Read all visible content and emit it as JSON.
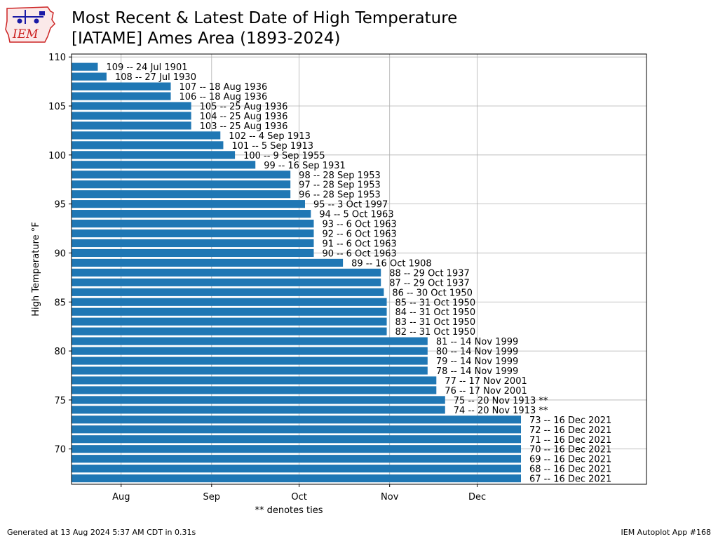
{
  "title_line1": "Most Recent & Latest Date of High Temperature",
  "title_line2": "[IATAME] Ames Area (1893-2024)",
  "logo_text": "IEM",
  "footer_left": "Generated at 13 Aug 2024 5:37 AM CDT in 0.31s",
  "footer_right": "IEM Autoplot App #168",
  "colors": {
    "bar": "#1f77b4",
    "grid": "#b0b0b0",
    "logo_red": "#cc2222",
    "logo_blue": "#1a1aa6"
  },
  "chart_data": {
    "type": "bar",
    "orientation": "horizontal",
    "title": "Most Recent & Latest Date of High Temperature [IATAME] Ames Area (1893-2024)",
    "xlabel": "** denotes ties",
    "ylabel": "High Temperature °F",
    "ylim": [
      66.4,
      110.3
    ],
    "yticks": [
      70,
      75,
      80,
      85,
      90,
      95,
      100,
      105,
      110
    ],
    "xlim": [
      "Jul 15",
      "Jan 28"
    ],
    "xticks": [
      {
        "label": "Aug",
        "date": "Aug 1"
      },
      {
        "label": "Sep",
        "date": "Sep 1"
      },
      {
        "label": "Oct",
        "date": "Oct 1"
      },
      {
        "label": "Nov",
        "date": "Nov 1"
      },
      {
        "label": "Dec",
        "date": "Dec 1"
      }
    ],
    "grid": true,
    "bars": [
      {
        "temp": 109,
        "date": "Jul 24",
        "label": "109 -- 24 Jul 1901"
      },
      {
        "temp": 108,
        "date": "Jul 27",
        "label": "108 -- 27 Jul 1930"
      },
      {
        "temp": 107,
        "date": "Aug 18",
        "label": "107 -- 18 Aug 1936"
      },
      {
        "temp": 106,
        "date": "Aug 18",
        "label": "106 -- 18 Aug 1936"
      },
      {
        "temp": 105,
        "date": "Aug 25",
        "label": "105 -- 25 Aug 1936"
      },
      {
        "temp": 104,
        "date": "Aug 25",
        "label": "104 -- 25 Aug 1936"
      },
      {
        "temp": 103,
        "date": "Aug 25",
        "label": "103 -- 25 Aug 1936"
      },
      {
        "temp": 102,
        "date": "Sep 4",
        "label": "102 -- 4 Sep 1913"
      },
      {
        "temp": 101,
        "date": "Sep 5",
        "label": "101 -- 5 Sep 1913"
      },
      {
        "temp": 100,
        "date": "Sep 9",
        "label": "100 -- 9 Sep 1955"
      },
      {
        "temp": 99,
        "date": "Sep 16",
        "label": "99 -- 16 Sep 1931"
      },
      {
        "temp": 98,
        "date": "Sep 28",
        "label": "98 -- 28 Sep 1953"
      },
      {
        "temp": 97,
        "date": "Sep 28",
        "label": "97 -- 28 Sep 1953"
      },
      {
        "temp": 96,
        "date": "Sep 28",
        "label": "96 -- 28 Sep 1953"
      },
      {
        "temp": 95,
        "date": "Oct 3",
        "label": "95 -- 3 Oct 1997"
      },
      {
        "temp": 94,
        "date": "Oct 5",
        "label": "94 -- 5 Oct 1963"
      },
      {
        "temp": 93,
        "date": "Oct 6",
        "label": "93 -- 6 Oct 1963"
      },
      {
        "temp": 92,
        "date": "Oct 6",
        "label": "92 -- 6 Oct 1963"
      },
      {
        "temp": 91,
        "date": "Oct 6",
        "label": "91 -- 6 Oct 1963"
      },
      {
        "temp": 90,
        "date": "Oct 6",
        "label": "90 -- 6 Oct 1963"
      },
      {
        "temp": 89,
        "date": "Oct 16",
        "label": "89 -- 16 Oct 1908"
      },
      {
        "temp": 88,
        "date": "Oct 29",
        "label": "88 -- 29 Oct 1937"
      },
      {
        "temp": 87,
        "date": "Oct 29",
        "label": "87 -- 29 Oct 1937"
      },
      {
        "temp": 86,
        "date": "Oct 30",
        "label": "86 -- 30 Oct 1950"
      },
      {
        "temp": 85,
        "date": "Oct 31",
        "label": "85 -- 31 Oct 1950"
      },
      {
        "temp": 84,
        "date": "Oct 31",
        "label": "84 -- 31 Oct 1950"
      },
      {
        "temp": 83,
        "date": "Oct 31",
        "label": "83 -- 31 Oct 1950"
      },
      {
        "temp": 82,
        "date": "Oct 31",
        "label": "82 -- 31 Oct 1950"
      },
      {
        "temp": 81,
        "date": "Nov 14",
        "label": "81 -- 14 Nov 1999"
      },
      {
        "temp": 80,
        "date": "Nov 14",
        "label": "80 -- 14 Nov 1999"
      },
      {
        "temp": 79,
        "date": "Nov 14",
        "label": "79 -- 14 Nov 1999"
      },
      {
        "temp": 78,
        "date": "Nov 14",
        "label": "78 -- 14 Nov 1999"
      },
      {
        "temp": 77,
        "date": "Nov 17",
        "label": "77 -- 17 Nov 2001"
      },
      {
        "temp": 76,
        "date": "Nov 17",
        "label": "76 -- 17 Nov 2001"
      },
      {
        "temp": 75,
        "date": "Nov 20",
        "label": "75 -- 20 Nov 1913 **"
      },
      {
        "temp": 74,
        "date": "Nov 20",
        "label": "74 -- 20 Nov 1913 **"
      },
      {
        "temp": 73,
        "date": "Dec 16",
        "label": "73 -- 16 Dec 2021"
      },
      {
        "temp": 72,
        "date": "Dec 16",
        "label": "72 -- 16 Dec 2021"
      },
      {
        "temp": 71,
        "date": "Dec 16",
        "label": "71 -- 16 Dec 2021"
      },
      {
        "temp": 70,
        "date": "Dec 16",
        "label": "70 -- 16 Dec 2021"
      },
      {
        "temp": 69,
        "date": "Dec 16",
        "label": "69 -- 16 Dec 2021"
      },
      {
        "temp": 68,
        "date": "Dec 16",
        "label": "68 -- 16 Dec 2021"
      },
      {
        "temp": 67,
        "date": "Dec 16",
        "label": "67 -- 16 Dec 2021"
      }
    ]
  }
}
